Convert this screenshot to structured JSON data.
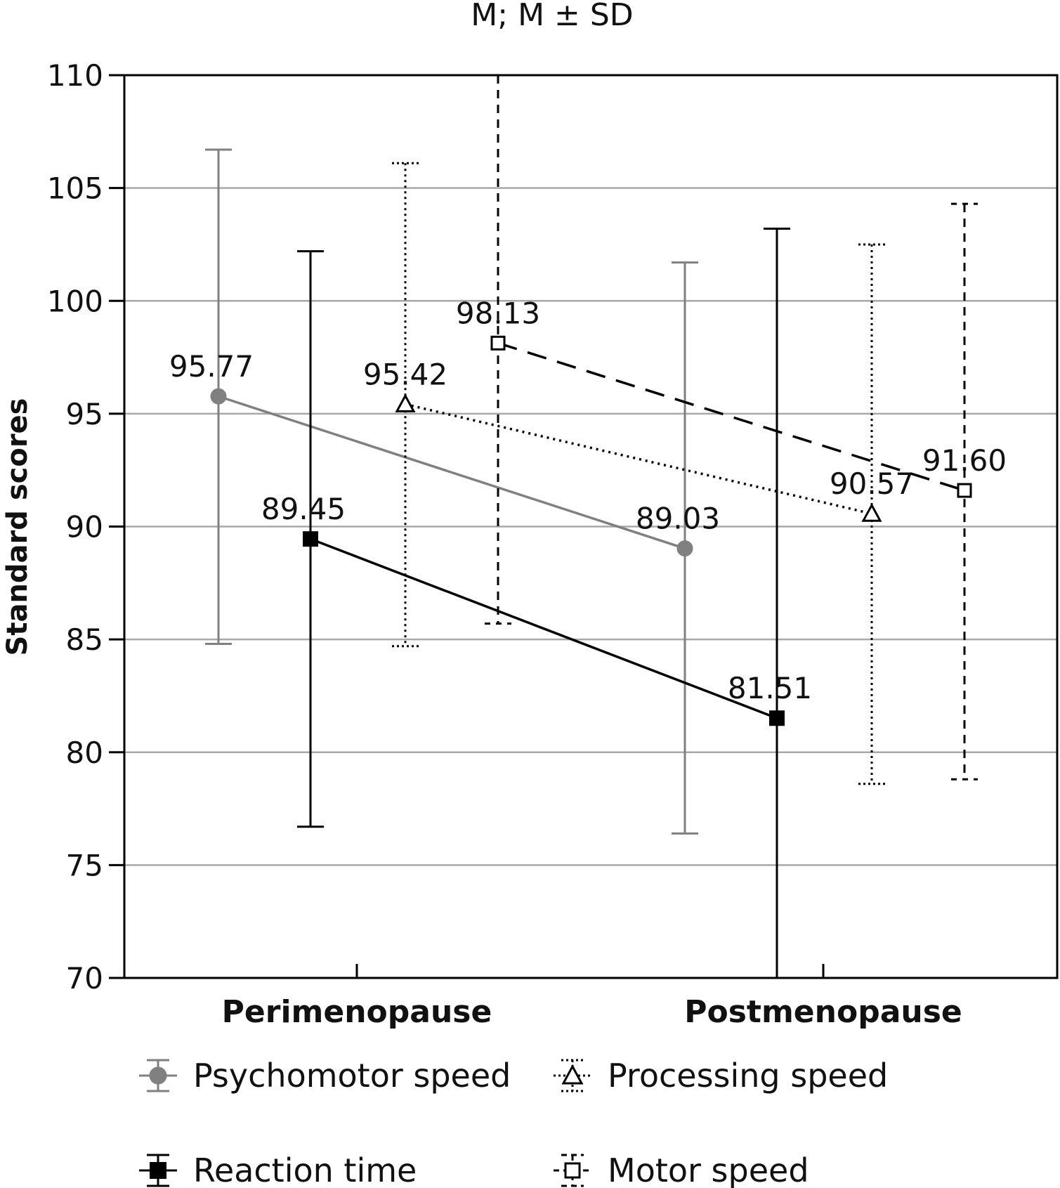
{
  "chart_data": {
    "type": "line",
    "title": "M; M ± SD",
    "xlabel": "",
    "ylabel": "Standard scores",
    "categories": [
      "Perimenopause",
      "Postmenopause"
    ],
    "ylim": [
      70,
      110
    ],
    "yticks": [
      70,
      75,
      80,
      85,
      90,
      95,
      100,
      105,
      110
    ],
    "grid": true,
    "legend_position": "bottom",
    "series": [
      {
        "name": "Psychomotor speed",
        "color": "#808080",
        "marker": "circle",
        "line_style": "solid",
        "means": [
          95.77,
          89.03
        ],
        "mean_labels": [
          "95.77",
          "89.03"
        ],
        "sd_low": [
          84.8,
          76.4
        ],
        "sd_high": [
          106.7,
          101.7
        ]
      },
      {
        "name": "Reaction time",
        "color": "#000000",
        "marker": "filled-square",
        "line_style": "solid",
        "means": [
          89.45,
          81.51
        ],
        "mean_labels": [
          "89.45",
          "81.51"
        ],
        "sd_low": [
          76.7,
          70
        ],
        "sd_high": [
          102.2,
          103.2
        ]
      },
      {
        "name": "Processing speed",
        "color": "#000000",
        "marker": "open-triangle",
        "line_style": "dotted",
        "means": [
          95.42,
          90.57
        ],
        "mean_labels": [
          "95.42",
          "90.57"
        ],
        "sd_low": [
          84.7,
          78.6
        ],
        "sd_high": [
          106.1,
          102.5
        ]
      },
      {
        "name": "Motor speed",
        "color": "#000000",
        "marker": "open-square",
        "line_style": "dashed",
        "means": [
          98.13,
          91.6
        ],
        "mean_labels": [
          "98.13",
          "91.60"
        ],
        "sd_low": [
          85.7,
          78.8
        ],
        "sd_high": [
          110,
          104.3
        ]
      }
    ]
  }
}
